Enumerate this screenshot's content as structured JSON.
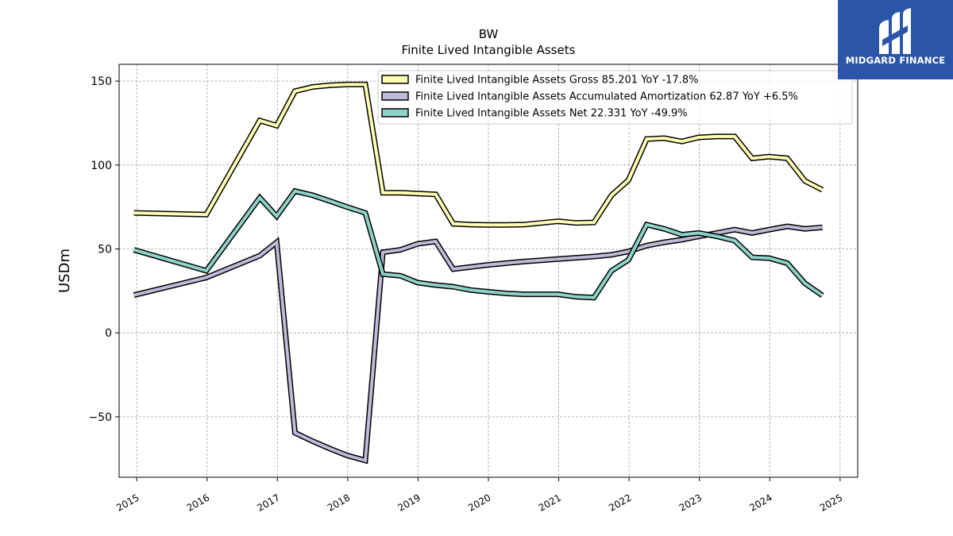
{
  "chart_data": {
    "type": "line",
    "title": "BW",
    "subtitle": "Finite Lived Intangible Assets",
    "xlabel": "",
    "ylabel": "USDm",
    "xlim": [
      2014.75,
      2025.25
    ],
    "ylim": [
      -86,
      160
    ],
    "x_ticks": [
      2015,
      2016,
      2017,
      2018,
      2019,
      2020,
      2021,
      2022,
      2023,
      2024,
      2025
    ],
    "x_tick_labels": [
      "2015",
      "2016",
      "2017",
      "2018",
      "2019",
      "2020",
      "2021",
      "2022",
      "2023",
      "2024",
      "2025"
    ],
    "y_ticks": [
      -50,
      0,
      50,
      100,
      150
    ],
    "y_tick_labels": [
      "−50",
      "0",
      "50",
      "100",
      "150"
    ],
    "grid": true,
    "legend_position": "top-right",
    "series": [
      {
        "name": "Finite Lived Intangible Assets Gross",
        "legend_label": "Finite Lived Intangible Assets Gross  85.201 YoY -17.8%",
        "color": "#ffffb3",
        "x": [
          2014.96,
          2015.99,
          2016.75,
          2016.99,
          2017.25,
          2017.5,
          2017.75,
          2017.99,
          2018.25,
          2018.5,
          2018.75,
          2018.99,
          2019.25,
          2019.5,
          2019.75,
          2019.99,
          2020.25,
          2020.5,
          2020.75,
          2020.99,
          2021.25,
          2021.5,
          2021.75,
          2021.99,
          2022.25,
          2022.5,
          2022.75,
          2022.99,
          2023.25,
          2023.5,
          2023.75,
          2023.99,
          2024.25,
          2024.5,
          2024.75
        ],
        "y": [
          71.5,
          70.5,
          126.5,
          123.5,
          144,
          146.5,
          147.5,
          148,
          148,
          83.5,
          83.5,
          83,
          82.5,
          65,
          64.5,
          64.3,
          64.3,
          64.5,
          65.5,
          66.5,
          65.5,
          65.8,
          82,
          91,
          115.5,
          116,
          114,
          116.5,
          117,
          117,
          104,
          105,
          104,
          90.5,
          85.2
        ]
      },
      {
        "name": "Finite Lived Intangible Assets Accumulated Amortization",
        "legend_label": "Finite Lived Intangible Assets Accumulated Amortization  62.87 YoY +6.5%",
        "color": "#bebada",
        "x": [
          2014.96,
          2015.99,
          2016.75,
          2016.99,
          2017.25,
          2017.5,
          2017.75,
          2017.99,
          2018.25,
          2018.5,
          2018.75,
          2018.99,
          2019.25,
          2019.5,
          2019.99,
          2020.5,
          2020.99,
          2021.5,
          2021.75,
          2021.99,
          2022.25,
          2022.5,
          2022.75,
          2022.99,
          2023.25,
          2023.5,
          2023.75,
          2023.99,
          2024.25,
          2024.5,
          2024.75
        ],
        "y": [
          22.5,
          33,
          46,
          54,
          -59.5,
          -64.5,
          -69,
          -73,
          -76,
          48,
          49.5,
          53,
          54.5,
          38,
          40.5,
          42.5,
          44,
          45.5,
          46.5,
          48.5,
          52,
          54,
          55.5,
          57.5,
          59.5,
          61.5,
          59.5,
          61.5,
          63.5,
          62,
          62.87
        ]
      },
      {
        "name": "Finite Lived Intangible Assets Net",
        "legend_label": "Finite Lived Intangible Assets Net  22.331 YoY -49.9%",
        "color": "#8dd3c7",
        "x": [
          2014.96,
          2015.99,
          2016.75,
          2016.99,
          2017.25,
          2017.5,
          2017.75,
          2017.99,
          2018.25,
          2018.5,
          2018.75,
          2018.99,
          2019.25,
          2019.5,
          2019.75,
          2019.99,
          2020.25,
          2020.5,
          2020.75,
          2020.99,
          2021.25,
          2021.5,
          2021.75,
          2021.99,
          2022.25,
          2022.5,
          2022.75,
          2022.99,
          2023.25,
          2023.5,
          2023.75,
          2023.99,
          2024.25,
          2024.5,
          2024.75
        ],
        "y": [
          49.5,
          37,
          80.5,
          69.5,
          84.5,
          82,
          78.5,
          75,
          71.5,
          35,
          34,
          30,
          28.5,
          27.5,
          25.5,
          24.5,
          23.5,
          23,
          23,
          23,
          21.5,
          21,
          37,
          43.5,
          64.5,
          62,
          58.5,
          59.5,
          57.5,
          55,
          45,
          44.5,
          41.5,
          29.5,
          22.3
        ]
      }
    ]
  },
  "logo": {
    "text": "MIDGARD FINANCE",
    "background": "#2b56a8"
  }
}
